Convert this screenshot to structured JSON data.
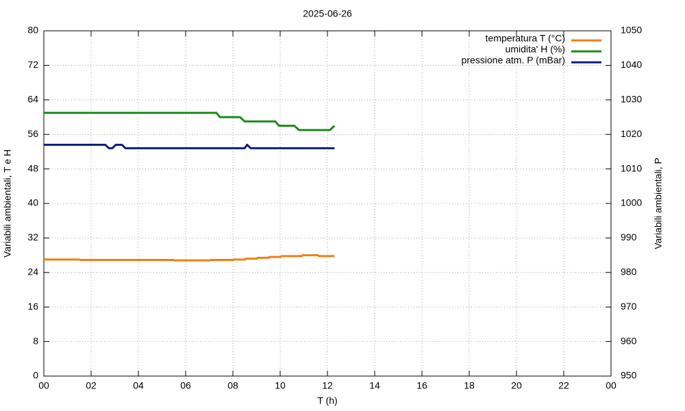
{
  "chart_data": {
    "type": "line",
    "title": "2025-06-26",
    "xlabel": "T (h)",
    "ylabel": "Variabili ambientali, T e H",
    "y2label": "Variabili ambientali, P",
    "xlim": [
      0,
      24
    ],
    "xticks": [
      {
        "value": 0,
        "label": "00"
      },
      {
        "value": 2,
        "label": "02"
      },
      {
        "value": 4,
        "label": "04"
      },
      {
        "value": 6,
        "label": "06"
      },
      {
        "value": 8,
        "label": "08"
      },
      10,
      12,
      14,
      16,
      18,
      20,
      22,
      {
        "value": 24,
        "label": "00"
      }
    ],
    "ylim": [
      0,
      80
    ],
    "yticks": [
      0,
      8,
      16,
      24,
      32,
      40,
      48,
      56,
      64,
      72,
      80
    ],
    "y2lim": [
      950,
      1050
    ],
    "y2ticks": [
      950,
      960,
      970,
      980,
      990,
      1000,
      1010,
      1020,
      1030,
      1040,
      1050
    ],
    "grid": true,
    "legend": "top-right",
    "series": [
      {
        "name": "temperatura T (°C)",
        "color": "#f07f10",
        "x": [
          0,
          1.5,
          1.55,
          5.5,
          5.55,
          7.0,
          7.05,
          8.0,
          8.05,
          8.5,
          8.55,
          9.0,
          9.05,
          9.5,
          9.55,
          10.0,
          10.05,
          10.9,
          10.95,
          11.6,
          11.65,
          12.3
        ],
        "values": [
          27.0,
          27.0,
          26.9,
          26.9,
          26.8,
          26.8,
          26.9,
          26.9,
          27.0,
          27.0,
          27.2,
          27.2,
          27.4,
          27.4,
          27.6,
          27.6,
          27.8,
          27.8,
          28.0,
          28.0,
          27.8,
          27.8
        ]
      },
      {
        "name": "umidita' H (%)",
        "color": "#1a8a1a",
        "x": [
          0,
          7.3,
          7.45,
          8.3,
          8.5,
          9.8,
          9.95,
          10.6,
          10.8,
          12.1,
          12.3
        ],
        "values": [
          61,
          61,
          60,
          60,
          59,
          59,
          58,
          58,
          57,
          57,
          58
        ]
      },
      {
        "name": "pressione atm. P (mBar)",
        "color": "#0c1c7c",
        "axis": "y2",
        "x": [
          0,
          2.6,
          2.75,
          2.9,
          3.05,
          3.3,
          3.45,
          8.5,
          8.6,
          8.75,
          12.3
        ],
        "values": [
          1017,
          1017,
          1016,
          1016,
          1017,
          1017,
          1016,
          1016,
          1017,
          1016,
          1016
        ]
      }
    ]
  }
}
